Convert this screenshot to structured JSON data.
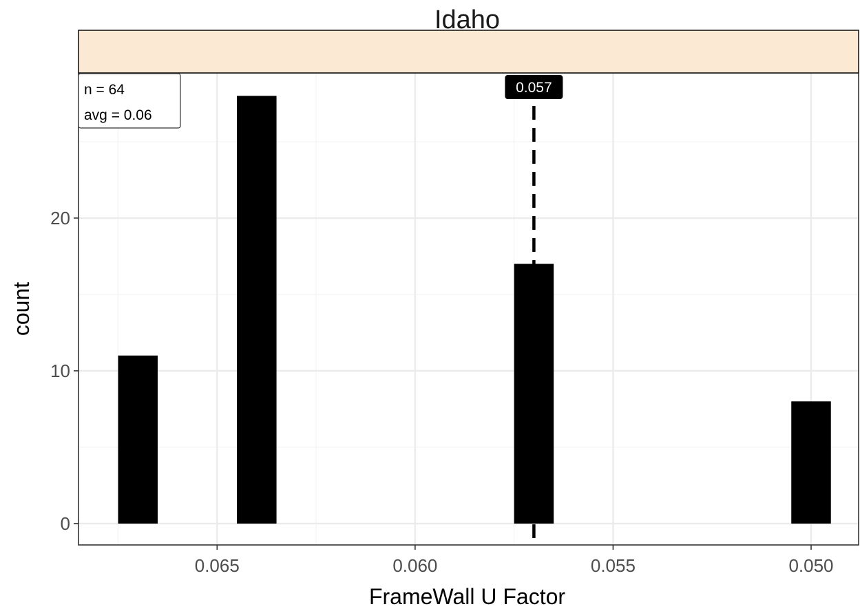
{
  "chart_data": {
    "type": "bar",
    "facet_title": "Idaho",
    "xlabel": "FrameWall U Factor",
    "ylabel": "count",
    "x_reversed": true,
    "xlim": [
      0.0685,
      0.0488
    ],
    "ylim": [
      -1.4,
      29.5
    ],
    "bar_width": 0.001,
    "x_ticks": [
      {
        "value": 0.065,
        "label": "0.065"
      },
      {
        "value": 0.06,
        "label": "0.060"
      },
      {
        "value": 0.055,
        "label": "0.055"
      },
      {
        "value": 0.05,
        "label": "0.050"
      }
    ],
    "y_ticks": [
      {
        "value": 0,
        "label": "0"
      },
      {
        "value": 10,
        "label": "10"
      },
      {
        "value": 20,
        "label": "20"
      }
    ],
    "bars": [
      {
        "x": 0.067,
        "count": 11
      },
      {
        "x": 0.064,
        "count": 28
      },
      {
        "x": 0.057,
        "count": 17
      },
      {
        "x": 0.05,
        "count": 8
      }
    ],
    "reference_line": {
      "x": 0.057,
      "label": "0.057",
      "style": "dashed"
    },
    "stats_box": {
      "n_label": "n = 64",
      "avg_label": "avg = 0.06"
    },
    "grid": true,
    "colors": {
      "bar": "#000000",
      "strip_fill": "#fbe9d3",
      "grid_major": "#ebebeb",
      "grid_minor": "#f5f5f5",
      "panel_border": "#333333"
    }
  }
}
